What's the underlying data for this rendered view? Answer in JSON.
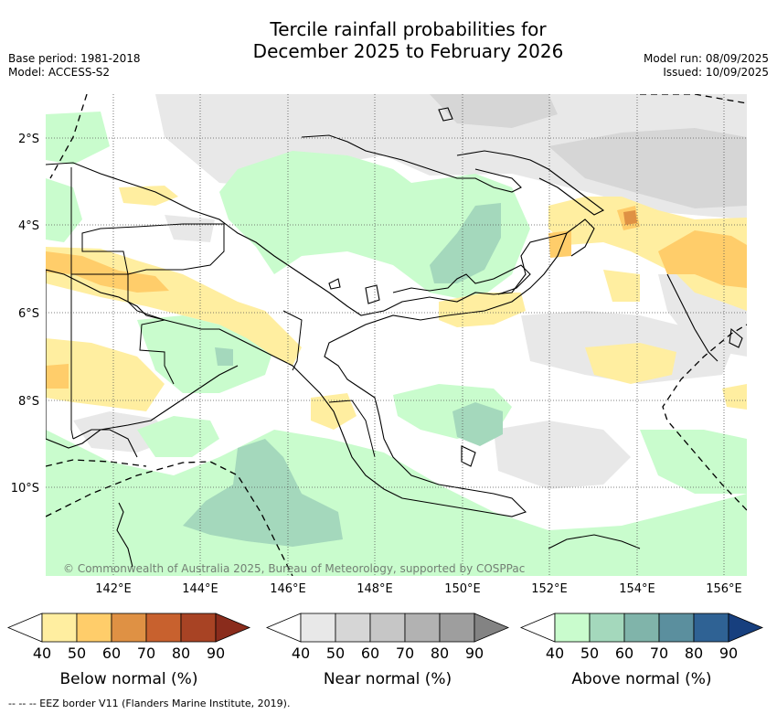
{
  "title_line1": "Tercile rainfall probabilities for",
  "title_line2": "December 2025 to February 2026",
  "meta_left": [
    "Base period: 1981-2018",
    "Model: ACCESS-S2"
  ],
  "meta_right": [
    "Model run: 08/09/2025",
    "Issued: 10/09/2025"
  ],
  "lat_labels": [
    "2°S",
    "4°S",
    "6°S",
    "8°S",
    "10°S"
  ],
  "lon_labels": [
    "142°E",
    "144°E",
    "146°E",
    "148°E",
    "150°E",
    "152°E",
    "154°E",
    "156°E"
  ],
  "copyright": "© Commonwealth of Australia 2025, Bureau of Meteorology, supported by COSPPac",
  "colorbars": [
    {
      "label": "Below normal (%)",
      "ticks": [
        "40",
        "50",
        "60",
        "70",
        "80",
        "90"
      ],
      "colors": [
        "#ffffff",
        "#ffeea0",
        "#ffcd6a",
        "#df9144",
        "#c8612e",
        "#a84324",
        "#8a2c1c"
      ]
    },
    {
      "label": "Near normal (%)",
      "ticks": [
        "40",
        "50",
        "60",
        "70",
        "80",
        "90"
      ],
      "colors": [
        "#ffffff",
        "#e8e8e8",
        "#d6d6d6",
        "#c6c6c6",
        "#b2b2b2",
        "#9e9e9e",
        "#838383"
      ]
    },
    {
      "label": "Above normal (%)",
      "ticks": [
        "40",
        "50",
        "60",
        "70",
        "80",
        "90"
      ],
      "colors": [
        "#ffffff",
        "#c9fccd",
        "#a4d8bc",
        "#80b4aa",
        "#5b8f9e",
        "#2f6294",
        "#173f7e"
      ]
    }
  ],
  "footnote": "--  --  -- EEZ border V11 (Flanders Marine Institute, 2019)."
}
